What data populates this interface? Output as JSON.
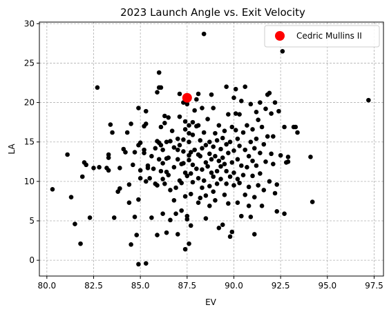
{
  "chart_data": {
    "type": "scatter",
    "title": "2023 Launch Angle vs. Exit Velocity",
    "xlabel": "EV",
    "ylabel": "LA",
    "xlim": [
      79.6,
      98.0
    ],
    "ylim": [
      -2.0,
      30.2
    ],
    "xticks": [
      "80.0",
      "82.5",
      "85.0",
      "87.5",
      "90.0",
      "92.5",
      "95.0",
      "97.5"
    ],
    "yticks": [
      "0",
      "5",
      "10",
      "15",
      "20",
      "25",
      "30"
    ],
    "grid": true,
    "legend_position": "top-right",
    "series": [
      {
        "name": "Cedric Mullins II",
        "color": "#ff0000",
        "points": [
          [
            87.5,
            20.6
          ]
        ]
      },
      {
        "color": "#000000",
        "points": [
          [
            80.3,
            9.0
          ],
          [
            81.1,
            13.4
          ],
          [
            81.3,
            8.0
          ],
          [
            81.5,
            4.6
          ],
          [
            81.8,
            2.1
          ],
          [
            81.9,
            10.6
          ],
          [
            82.0,
            12.4
          ],
          [
            82.1,
            12.1
          ],
          [
            82.3,
            5.4
          ],
          [
            82.5,
            11.7
          ],
          [
            82.7,
            21.9
          ],
          [
            82.8,
            11.8
          ],
          [
            83.2,
            11.7
          ],
          [
            83.3,
            13.4
          ],
          [
            83.3,
            13.0
          ],
          [
            83.3,
            11.4
          ],
          [
            83.4,
            17.2
          ],
          [
            83.5,
            16.2
          ],
          [
            83.6,
            5.4
          ],
          [
            83.8,
            8.7
          ],
          [
            83.9,
            9.1
          ],
          [
            83.9,
            11.7
          ],
          [
            84.1,
            14.1
          ],
          [
            84.2,
            13.7
          ],
          [
            84.3,
            16.2
          ],
          [
            84.4,
            9.6
          ],
          [
            84.4,
            7.3
          ],
          [
            84.5,
            2.0
          ],
          [
            84.5,
            17.3
          ],
          [
            84.6,
            12.1
          ],
          [
            84.7,
            5.5
          ],
          [
            84.7,
            13.7
          ],
          [
            84.8,
            3.2
          ],
          [
            84.9,
            19.3
          ],
          [
            84.9,
            -0.5
          ],
          [
            84.9,
            7.7
          ],
          [
            84.9,
            14.6
          ],
          [
            85.0,
            14.9
          ],
          [
            85.0,
            10.4
          ],
          [
            85.0,
            11.4
          ],
          [
            85.2,
            13.6
          ],
          [
            85.2,
            14.0
          ],
          [
            85.2,
            17.0
          ],
          [
            85.3,
            17.3
          ],
          [
            85.3,
            18.9
          ],
          [
            85.3,
            -0.4
          ],
          [
            85.3,
            10.0
          ],
          [
            85.4,
            12.0
          ],
          [
            85.4,
            11.7
          ],
          [
            85.5,
            10.4
          ],
          [
            85.6,
            5.4
          ],
          [
            85.6,
            13.2
          ],
          [
            85.7,
            11.6
          ],
          [
            85.8,
            9.7
          ],
          [
            85.8,
            14.2
          ],
          [
            85.9,
            3.2
          ],
          [
            85.9,
            9.5
          ],
          [
            85.9,
            15.1
          ],
          [
            85.9,
            21.3
          ],
          [
            86.0,
            23.8
          ],
          [
            86.0,
            21.9
          ],
          [
            86.0,
            12.8
          ],
          [
            86.0,
            14.9
          ],
          [
            86.1,
            21.9
          ],
          [
            86.1,
            16.9
          ],
          [
            86.1,
            11.3
          ],
          [
            86.1,
            14.6
          ],
          [
            86.2,
            10.3
          ],
          [
            86.2,
            12.3
          ],
          [
            86.2,
            14.0
          ],
          [
            86.2,
            5.9
          ],
          [
            86.3,
            9.7
          ],
          [
            86.3,
            17.4
          ],
          [
            86.3,
            18.3
          ],
          [
            86.4,
            3.5
          ],
          [
            86.4,
            15.0
          ],
          [
            86.4,
            11.2
          ],
          [
            86.4,
            12.9
          ],
          [
            86.5,
            18.1
          ],
          [
            86.5,
            13.0
          ],
          [
            86.5,
            10.8
          ],
          [
            86.6,
            15.1
          ],
          [
            86.6,
            8.9
          ],
          [
            86.6,
            5.1
          ],
          [
            86.7,
            16.4
          ],
          [
            86.8,
            14.3
          ],
          [
            86.8,
            11.8
          ],
          [
            86.8,
            7.6
          ],
          [
            86.9,
            9.2
          ],
          [
            86.9,
            5.9
          ],
          [
            87.0,
            12.8
          ],
          [
            87.0,
            14.0
          ],
          [
            87.0,
            3.3
          ],
          [
            87.0,
            15.4
          ],
          [
            87.1,
            10.1
          ],
          [
            87.1,
            18.2
          ],
          [
            87.1,
            21.1
          ],
          [
            87.1,
            14.6
          ],
          [
            87.2,
            12.2
          ],
          [
            87.2,
            6.3
          ],
          [
            87.2,
            9.8
          ],
          [
            87.3,
            12.3
          ],
          [
            87.3,
            13.8
          ],
          [
            87.3,
            20.0
          ],
          [
            87.3,
            15.3
          ],
          [
            87.4,
            16.6
          ],
          [
            87.4,
            11.1
          ],
          [
            87.4,
            8.1
          ],
          [
            87.4,
            17.6
          ],
          [
            87.4,
            1.4
          ],
          [
            87.5,
            19.8
          ],
          [
            87.5,
            10.7
          ],
          [
            87.5,
            5.6
          ],
          [
            87.5,
            5.2
          ],
          [
            87.6,
            13.3
          ],
          [
            87.6,
            16.1
          ],
          [
            87.6,
            17.1
          ],
          [
            87.6,
            15.0
          ],
          [
            87.6,
            12.7
          ],
          [
            87.6,
            2.1
          ],
          [
            87.7,
            8.4
          ],
          [
            87.7,
            13.7
          ],
          [
            87.7,
            4.4
          ],
          [
            87.7,
            11.0
          ],
          [
            87.8,
            15.9
          ],
          [
            87.8,
            9.9
          ],
          [
            87.8,
            12.1
          ],
          [
            87.8,
            17.5
          ],
          [
            87.9,
            19.0
          ],
          [
            87.9,
            14.0
          ],
          [
            88.0,
            11.6
          ],
          [
            88.0,
            17.0
          ],
          [
            88.0,
            20.4
          ],
          [
            88.1,
            13.4
          ],
          [
            88.1,
            7.3
          ],
          [
            88.1,
            10.4
          ],
          [
            88.1,
            17.1
          ],
          [
            88.1,
            21.1
          ],
          [
            88.2,
            15.2
          ],
          [
            88.2,
            7.9
          ],
          [
            88.2,
            13.2
          ],
          [
            88.3,
            9.2
          ],
          [
            88.3,
            19.3
          ],
          [
            88.3,
            11.5
          ],
          [
            88.3,
            14.2
          ],
          [
            88.4,
            28.7
          ],
          [
            88.4,
            10.1
          ],
          [
            88.4,
            16.2
          ],
          [
            88.5,
            12.4
          ],
          [
            88.5,
            5.3
          ],
          [
            88.5,
            14.6
          ],
          [
            88.5,
            8.2
          ],
          [
            88.6,
            11.9
          ],
          [
            88.6,
            17.9
          ],
          [
            88.7,
            13.5
          ],
          [
            88.7,
            9.4
          ],
          [
            88.7,
            15.0
          ],
          [
            88.7,
            6.9
          ],
          [
            88.8,
            21.0
          ],
          [
            88.8,
            11.1
          ],
          [
            88.8,
            12.8
          ],
          [
            88.9,
            14.4
          ],
          [
            88.9,
            8.7
          ],
          [
            88.9,
            10.6
          ],
          [
            88.9,
            19.3
          ],
          [
            89.0,
            16.1
          ],
          [
            89.0,
            7.6
          ],
          [
            89.0,
            13.2
          ],
          [
            89.1,
            11.3
          ],
          [
            89.1,
            15.2
          ],
          [
            89.1,
            9.7
          ],
          [
            89.2,
            4.1
          ],
          [
            89.2,
            12.6
          ],
          [
            89.2,
            17.1
          ],
          [
            89.3,
            14.1
          ],
          [
            89.3,
            11.9
          ],
          [
            89.3,
            10.3
          ],
          [
            89.4,
            4.5
          ],
          [
            89.4,
            13.0
          ],
          [
            89.4,
            15.5
          ],
          [
            89.5,
            8.3
          ],
          [
            89.5,
            16.4
          ],
          [
            89.5,
            12.2
          ],
          [
            89.6,
            9.7
          ],
          [
            89.6,
            11.3
          ],
          [
            89.6,
            22.0
          ],
          [
            89.6,
            14.7
          ],
          [
            89.7,
            18.5
          ],
          [
            89.7,
            13.6
          ],
          [
            89.7,
            7.2
          ],
          [
            89.8,
            3.0
          ],
          [
            89.8,
            10.6
          ],
          [
            89.8,
            15.0
          ],
          [
            89.9,
            12.4
          ],
          [
            89.9,
            16.9
          ],
          [
            89.9,
            3.6
          ],
          [
            90.0,
            20.6
          ],
          [
            90.0,
            11.1
          ],
          [
            90.0,
            13.9
          ],
          [
            90.0,
            9.5
          ],
          [
            90.1,
            16.5
          ],
          [
            90.1,
            18.6
          ],
          [
            90.1,
            21.7
          ],
          [
            90.2,
            10.3
          ],
          [
            90.2,
            12.8
          ],
          [
            90.2,
            7.3
          ],
          [
            90.2,
            15.4
          ],
          [
            90.3,
            9.8
          ],
          [
            90.3,
            14.5
          ],
          [
            90.3,
            18.5
          ],
          [
            90.4,
            12.0
          ],
          [
            90.4,
            5.6
          ],
          [
            90.4,
            20.2
          ],
          [
            90.5,
            16.2
          ],
          [
            90.5,
            10.8
          ],
          [
            90.6,
            14.0
          ],
          [
            90.6,
            8.3
          ],
          [
            90.6,
            22.0
          ],
          [
            90.7,
            11.8
          ],
          [
            90.7,
            17.1
          ],
          [
            90.8,
            13.2
          ],
          [
            90.8,
            6.9
          ],
          [
            90.8,
            9.3
          ],
          [
            90.9,
            15.0
          ],
          [
            90.9,
            19.8
          ],
          [
            90.9,
            5.5
          ],
          [
            91.0,
            12.6
          ],
          [
            91.0,
            16.6
          ],
          [
            91.0,
            10.7
          ],
          [
            91.1,
            14.2
          ],
          [
            91.1,
            8.0
          ],
          [
            91.1,
            3.3
          ],
          [
            91.2,
            18.8
          ],
          [
            91.2,
            12.0
          ],
          [
            91.2,
            15.4
          ],
          [
            91.3,
            9.5
          ],
          [
            91.3,
            17.8
          ],
          [
            91.4,
            13.6
          ],
          [
            91.4,
            20.0
          ],
          [
            91.4,
            11.0
          ],
          [
            91.5,
            6.9
          ],
          [
            91.5,
            16.9
          ],
          [
            91.6,
            14.7
          ],
          [
            91.6,
            8.9
          ],
          [
            91.7,
            12.5
          ],
          [
            91.7,
            19.2
          ],
          [
            91.8,
            21.0
          ],
          [
            91.8,
            15.7
          ],
          [
            91.9,
            10.0
          ],
          [
            91.9,
            21.2
          ],
          [
            92.0,
            18.6
          ],
          [
            92.0,
            13.5
          ],
          [
            92.1,
            15.7
          ],
          [
            92.1,
            12.2
          ],
          [
            92.2,
            20.0
          ],
          [
            92.2,
            8.5
          ],
          [
            92.3,
            9.6
          ],
          [
            92.3,
            6.2
          ],
          [
            92.4,
            18.9
          ],
          [
            92.5,
            13.3
          ],
          [
            92.6,
            26.5
          ],
          [
            92.7,
            16.9
          ],
          [
            92.7,
            5.9
          ],
          [
            92.8,
            12.4
          ],
          [
            92.9,
            13.1
          ],
          [
            92.9,
            12.5
          ],
          [
            93.2,
            16.9
          ],
          [
            93.3,
            16.9
          ],
          [
            93.4,
            16.2
          ],
          [
            94.1,
            13.1
          ],
          [
            94.2,
            7.4
          ],
          [
            97.2,
            20.3
          ]
        ]
      }
    ]
  }
}
